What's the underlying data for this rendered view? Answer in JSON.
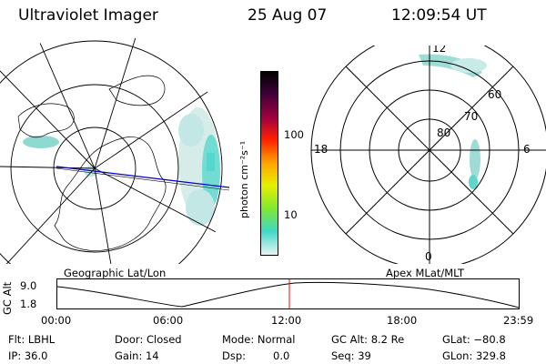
{
  "header": {
    "instrument": "Ultraviolet Imager",
    "date": "25 Aug 07",
    "time": "12:09:54 UT"
  },
  "left_panel": {
    "caption": "Geographic Lat/Lon"
  },
  "right_panel": {
    "caption": "Apex MLat/MLT",
    "mlt_labels": {
      "top": "12",
      "left": "18",
      "right": "6",
      "bottom": "0"
    },
    "lat_labels": [
      "60",
      "70",
      "80"
    ]
  },
  "colorbar": {
    "unit_label": "photon cm⁻²s⁻¹",
    "ticks": [
      "100",
      "10"
    ],
    "colors": [
      "#e8f4f4",
      "#3fd8c8",
      "#7ee832",
      "#e6f000",
      "#ffa500",
      "#ff2000",
      "#a00040",
      "#40003a",
      "#000000"
    ]
  },
  "altitude_plot": {
    "ylabel": "GC Alt",
    "yticks": [
      "9.0",
      "1.8"
    ],
    "xticks": [
      "00:00",
      "06:00",
      "12:00",
      "18:00",
      "23:59"
    ],
    "current_time_marker_color": "#ff0000"
  },
  "status": {
    "flt": "Flt: LBHL",
    "door": "Door: Closed",
    "mode": "Mode: Normal",
    "gc_alt": "GC Alt: 8.2 Re",
    "glat": "GLat: −80.8",
    "ip": "IP: 36.0",
    "gain": "Gain: 14",
    "dsp_label": "Dsp:",
    "dsp_value": "0.0",
    "seq": "Seq: 39",
    "glon": "GLon: 329.8"
  }
}
